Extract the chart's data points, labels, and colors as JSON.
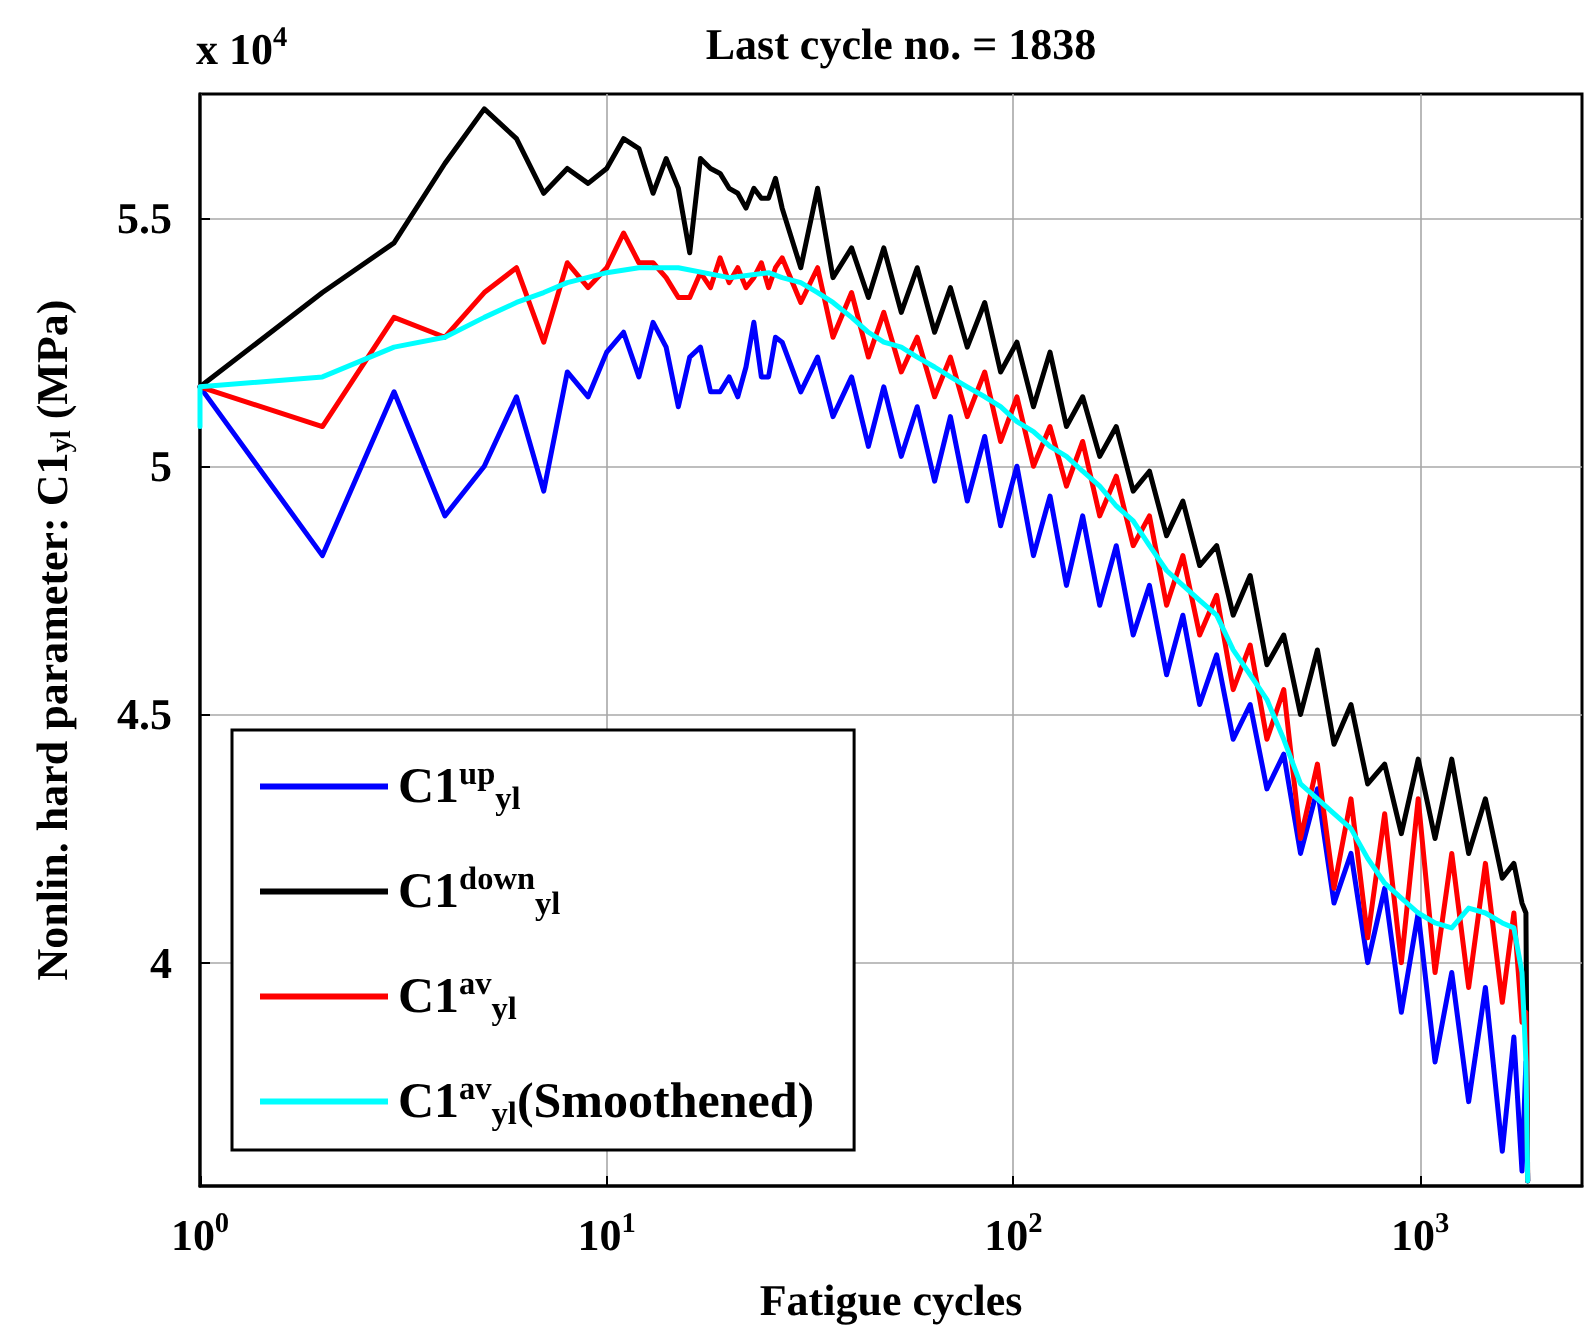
{
  "chart_data": {
    "type": "line",
    "title": "Last cycle no. = 1838",
    "xlabel": "Fatigue cycles",
    "ylabel": "Nonlin. hard parameter: C1$_{yl}$ (MPa)",
    "annotations": [
      "x 10$^{4}$"
    ],
    "log": "x",
    "grid": true,
    "legend": "bottom left",
    "marker": "none",
    "line_style": "solid",
    "xlim": [
      1,
      2500
    ],
    "xticks": [
      {
        "value": 1,
        "label": "10$^{0}$"
      },
      {
        "value": 10,
        "label": "10$^{1}$"
      },
      {
        "value": 100,
        "label": "10$^{2}$"
      },
      {
        "value": 1000,
        "label": "10$^{3}$"
      }
    ],
    "ylim": [
      3.55,
      5.75
    ],
    "yticks": [
      4,
      4.5,
      5,
      5.5
    ],
    "series": [
      {
        "name": "C1$^{up}$$_{yl}$",
        "color": "#0000ff",
        "x": [
          1,
          2,
          3,
          4,
          5,
          6,
          7,
          8,
          9,
          10,
          11,
          12,
          13,
          14,
          15,
          16,
          17,
          18,
          19,
          20,
          21,
          22,
          23,
          24,
          25,
          26,
          27,
          30,
          33,
          36,
          40,
          44,
          48,
          53,
          58,
          64,
          70,
          77,
          85,
          93,
          102,
          112,
          123,
          135,
          148,
          163,
          179,
          197,
          216,
          238,
          261,
          287,
          316,
          347,
          382,
          420,
          462,
          508,
          559,
          614,
          676,
          743,
          818,
          899,
          989,
          1088,
          1196,
          1316,
          1447,
          1592,
          1700,
          1780,
          1820,
          1838
        ],
        "values": [
          5.16,
          4.82,
          5.15,
          4.9,
          5.0,
          5.14,
          4.95,
          5.19,
          5.14,
          5.23,
          5.27,
          5.18,
          5.29,
          5.24,
          5.12,
          5.22,
          5.24,
          5.15,
          5.15,
          5.18,
          5.14,
          5.2,
          5.29,
          5.18,
          5.18,
          5.26,
          5.25,
          5.15,
          5.22,
          5.1,
          5.18,
          5.04,
          5.16,
          5.02,
          5.12,
          4.97,
          5.1,
          4.93,
          5.06,
          4.88,
          5.0,
          4.82,
          4.94,
          4.76,
          4.9,
          4.72,
          4.84,
          4.66,
          4.76,
          4.58,
          4.7,
          4.52,
          4.62,
          4.45,
          4.52,
          4.35,
          4.42,
          4.22,
          4.35,
          4.12,
          4.22,
          4.0,
          4.15,
          3.9,
          4.1,
          3.8,
          3.98,
          3.72,
          3.95,
          3.62,
          3.85,
          3.58,
          3.8,
          3.56
        ]
      },
      {
        "name": "C1$^{down}$$_{yl}$",
        "color": "#000000",
        "x": [
          1,
          2,
          3,
          4,
          5,
          6,
          7,
          8,
          9,
          10,
          11,
          12,
          13,
          14,
          15,
          16,
          17,
          18,
          19,
          20,
          21,
          22,
          23,
          24,
          25,
          26,
          27,
          30,
          33,
          36,
          40,
          44,
          48,
          53,
          58,
          64,
          70,
          77,
          85,
          93,
          102,
          112,
          123,
          135,
          148,
          163,
          179,
          197,
          216,
          238,
          261,
          287,
          316,
          347,
          382,
          420,
          462,
          508,
          559,
          614,
          676,
          743,
          818,
          899,
          989,
          1088,
          1196,
          1316,
          1447,
          1592,
          1700,
          1780,
          1820,
          1838
        ],
        "values": [
          5.16,
          5.35,
          5.45,
          5.61,
          5.72,
          5.66,
          5.55,
          5.6,
          5.57,
          5.6,
          5.66,
          5.64,
          5.55,
          5.62,
          5.56,
          5.43,
          5.62,
          5.6,
          5.59,
          5.56,
          5.55,
          5.52,
          5.56,
          5.54,
          5.54,
          5.58,
          5.52,
          5.4,
          5.56,
          5.38,
          5.44,
          5.34,
          5.44,
          5.31,
          5.4,
          5.27,
          5.36,
          5.24,
          5.33,
          5.19,
          5.25,
          5.12,
          5.23,
          5.08,
          5.14,
          5.02,
          5.08,
          4.95,
          4.99,
          4.86,
          4.93,
          4.8,
          4.84,
          4.7,
          4.78,
          4.6,
          4.66,
          4.5,
          4.63,
          4.44,
          4.52,
          4.36,
          4.4,
          4.26,
          4.41,
          4.25,
          4.41,
          4.22,
          4.33,
          4.17,
          4.2,
          4.12,
          4.1,
          3.56
        ]
      },
      {
        "name": "C1$^{av}$$_{yl}$",
        "color": "#ff0000",
        "x": [
          1,
          2,
          3,
          4,
          5,
          6,
          7,
          8,
          9,
          10,
          11,
          12,
          13,
          14,
          15,
          16,
          17,
          18,
          19,
          20,
          21,
          22,
          23,
          24,
          25,
          26,
          27,
          30,
          33,
          36,
          40,
          44,
          48,
          53,
          58,
          64,
          70,
          77,
          85,
          93,
          102,
          112,
          123,
          135,
          148,
          163,
          179,
          197,
          216,
          238,
          261,
          287,
          316,
          347,
          382,
          420,
          462,
          508,
          559,
          614,
          676,
          743,
          818,
          899,
          989,
          1088,
          1196,
          1316,
          1447,
          1592,
          1700,
          1780,
          1820,
          1838
        ],
        "values": [
          5.16,
          5.08,
          5.3,
          5.26,
          5.35,
          5.4,
          5.25,
          5.41,
          5.36,
          5.4,
          5.47,
          5.41,
          5.41,
          5.38,
          5.34,
          5.34,
          5.39,
          5.36,
          5.42,
          5.37,
          5.4,
          5.36,
          5.38,
          5.41,
          5.36,
          5.4,
          5.42,
          5.33,
          5.4,
          5.26,
          5.35,
          5.22,
          5.31,
          5.19,
          5.26,
          5.14,
          5.22,
          5.1,
          5.19,
          5.05,
          5.14,
          5.0,
          5.08,
          4.96,
          5.05,
          4.9,
          4.98,
          4.84,
          4.9,
          4.72,
          4.82,
          4.66,
          4.74,
          4.55,
          4.64,
          4.45,
          4.55,
          4.25,
          4.4,
          4.15,
          4.33,
          4.05,
          4.3,
          4.0,
          4.33,
          3.98,
          4.22,
          3.95,
          4.2,
          3.92,
          4.1,
          3.88,
          3.9,
          3.56
        ]
      },
      {
        "name": "C1$^{av}$$_{yl}$(Smoothened)",
        "color": "#00ffff",
        "x": [
          1,
          1,
          2,
          3,
          4,
          5,
          6,
          7,
          8,
          10,
          12,
          15,
          20,
          25,
          27,
          30,
          33,
          36,
          40,
          44,
          48,
          53,
          58,
          64,
          70,
          77,
          85,
          93,
          102,
          112,
          123,
          135,
          148,
          163,
          179,
          197,
          216,
          238,
          261,
          287,
          316,
          347,
          382,
          420,
          462,
          508,
          559,
          614,
          676,
          743,
          818,
          899,
          989,
          1088,
          1196,
          1316,
          1447,
          1592,
          1700,
          1780,
          1820,
          1838
        ],
        "values": [
          5.08,
          5.16,
          5.18,
          5.24,
          5.26,
          5.3,
          5.33,
          5.35,
          5.37,
          5.39,
          5.4,
          5.4,
          5.38,
          5.39,
          5.38,
          5.37,
          5.35,
          5.33,
          5.3,
          5.27,
          5.25,
          5.24,
          5.22,
          5.2,
          5.18,
          5.16,
          5.14,
          5.12,
          5.09,
          5.07,
          5.04,
          5.02,
          4.99,
          4.96,
          4.92,
          4.89,
          4.84,
          4.79,
          4.76,
          4.73,
          4.7,
          4.63,
          4.58,
          4.53,
          4.45,
          4.36,
          4.33,
          4.3,
          4.27,
          4.21,
          4.16,
          4.13,
          4.1,
          4.08,
          4.07,
          4.11,
          4.1,
          4.08,
          4.07,
          3.98,
          3.8,
          3.56
        ]
      }
    ]
  }
}
